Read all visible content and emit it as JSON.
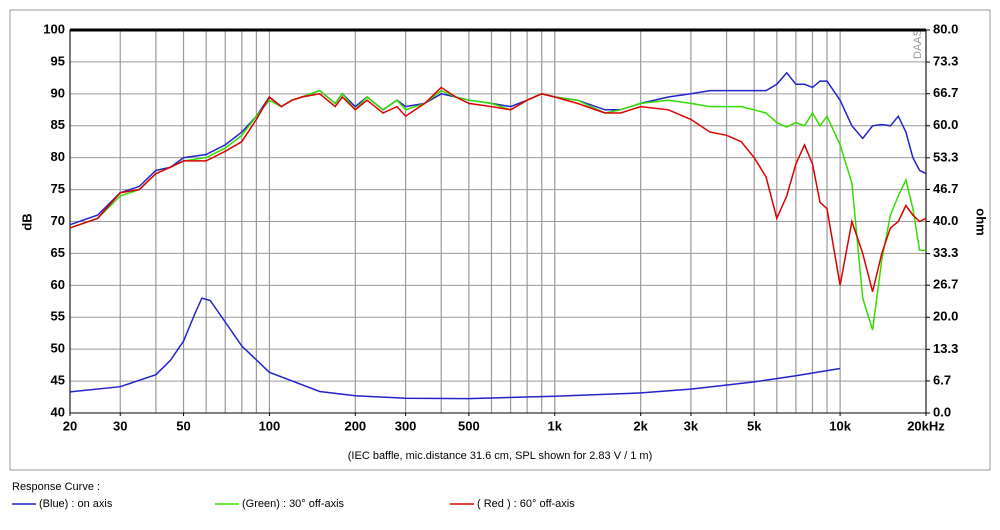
{
  "chart_data": {
    "type": "line",
    "caption": "(IEC baffle, mic.distance 31.6 cm, SPL shown for 2.83 V / 1 m)",
    "ylabel": "dB",
    "y2label": "ohm",
    "watermark": "DAAS",
    "legend_title": "Response Curve :",
    "log_x": true,
    "grid": true,
    "xlim": [
      20,
      20000
    ],
    "ylim": [
      40,
      100
    ],
    "y2lim": [
      0,
      80
    ],
    "xticks": [
      20,
      30,
      50,
      100,
      200,
      300,
      500,
      {
        "value": 1000,
        "label": "1k"
      },
      {
        "value": 2000,
        "label": "2k"
      },
      {
        "value": 3000,
        "label": "3k"
      },
      {
        "value": 5000,
        "label": "5k"
      },
      {
        "value": 10000,
        "label": "10k"
      },
      {
        "value": 20000,
        "label": "20kHz"
      }
    ],
    "xgrid": [
      20,
      30,
      40,
      50,
      60,
      70,
      80,
      90,
      100,
      200,
      300,
      400,
      500,
      600,
      700,
      800,
      900,
      1000,
      2000,
      3000,
      4000,
      5000,
      6000,
      7000,
      8000,
      9000,
      10000,
      20000
    ],
    "yticks": [
      40,
      45,
      50,
      55,
      60,
      65,
      70,
      75,
      80,
      85,
      90,
      95,
      100
    ],
    "y2ticks": [
      {
        "value": 0,
        "label": "0.0"
      },
      {
        "value": 6.7,
        "label": "6.7"
      },
      {
        "value": 13.3,
        "label": "13.3"
      },
      {
        "value": 20,
        "label": "20.0"
      },
      {
        "value": 26.7,
        "label": "26.7"
      },
      {
        "value": 33.3,
        "label": "33.3"
      },
      {
        "value": 40,
        "label": "40.0"
      },
      {
        "value": 46.7,
        "label": "46.7"
      },
      {
        "value": 53.3,
        "label": "53.3"
      },
      {
        "value": 60,
        "label": "60.0"
      },
      {
        "value": 66.7,
        "label": "66.7"
      },
      {
        "value": 73.3,
        "label": "73.3"
      },
      {
        "value": 80,
        "label": "80.0"
      }
    ],
    "x": [
      20,
      25,
      30,
      35,
      40,
      45,
      50,
      60,
      70,
      80,
      90,
      100,
      110,
      120,
      130,
      150,
      170,
      180,
      200,
      220,
      250,
      280,
      300,
      350,
      400,
      450,
      500,
      600,
      700,
      800,
      900,
      1000,
      1200,
      1500,
      1700,
      2000,
      2500,
      3000,
      3500,
      4000,
      4500,
      5000,
      5500,
      6000,
      6500,
      7000,
      7500,
      8000,
      8500,
      9000,
      10000,
      11000,
      12000,
      13000,
      14000,
      15000,
      16000,
      17000,
      18000,
      19000,
      20000
    ],
    "series": [
      {
        "name": "(Blue)  : on axis",
        "color": "#2222cc",
        "values": [
          69.5,
          71,
          74.5,
          75.5,
          78,
          78.5,
          80,
          80.5,
          82,
          84,
          86.5,
          89.5,
          88,
          89,
          89.5,
          90.5,
          88.5,
          90,
          88,
          89.5,
          87.5,
          89,
          88,
          88.5,
          90,
          89.5,
          89,
          88.5,
          88,
          89,
          90,
          89.5,
          89,
          87.5,
          87.5,
          88.5,
          89.5,
          90,
          90.5,
          90.5,
          90.5,
          90.5,
          90.5,
          91.5,
          93.3,
          91.5,
          91.5,
          91,
          92,
          92,
          89,
          85,
          83,
          85,
          85.2,
          85,
          86.5,
          84,
          80,
          78,
          77.5
        ]
      },
      {
        "name": "(Green) : 30° off-axis",
        "color": "#33dd00",
        "values": [
          69,
          70.5,
          74,
          75,
          77.5,
          78.5,
          79.5,
          80,
          81.5,
          83.5,
          86.5,
          89,
          88,
          89,
          89.5,
          90.5,
          88.5,
          90,
          87.5,
          89.5,
          87.5,
          89,
          87.5,
          88.5,
          90.5,
          89.5,
          89,
          88.5,
          87.5,
          89,
          90,
          89.5,
          89,
          87,
          87.5,
          88.5,
          89,
          88.5,
          88,
          88,
          88,
          87.5,
          87,
          85.5,
          84.8,
          85.5,
          85,
          87,
          85,
          86.5,
          82,
          76,
          58,
          53,
          64,
          71,
          74,
          76.5,
          72,
          65.5,
          65.5
        ]
      },
      {
        "name": "( Red ) : 60° off-axis",
        "color": "#dd0000",
        "values": [
          69,
          70.5,
          74.5,
          75,
          77.5,
          78.5,
          79.5,
          79.5,
          81,
          82.5,
          86,
          89.5,
          88,
          89,
          89.5,
          90,
          88,
          89.5,
          87.5,
          89,
          87,
          88,
          86.5,
          88.5,
          91,
          89.5,
          88.5,
          88,
          87.5,
          89,
          90,
          89.5,
          88.5,
          87,
          87,
          88,
          87.5,
          86,
          84,
          83.5,
          82.5,
          80,
          77,
          70.5,
          74,
          79,
          82,
          79,
          73,
          72,
          60,
          70,
          65,
          59,
          65,
          69,
          70,
          72.5,
          71,
          70,
          70.5
        ]
      },
      {
        "color": "#2222cc",
        "axis": "y2",
        "x": [
          20,
          30,
          40,
          45,
          50,
          55,
          58,
          62,
          70,
          80,
          100,
          150,
          200,
          300,
          500,
          1000,
          2000,
          3000,
          5000,
          7000,
          10000
        ],
        "values": [
          4.4,
          5.5,
          8,
          11,
          15,
          21,
          24,
          23.5,
          19,
          14,
          8.5,
          4.5,
          3.6,
          3.1,
          3,
          3.5,
          4.2,
          5,
          6.5,
          7.8,
          9.3
        ]
      }
    ]
  }
}
